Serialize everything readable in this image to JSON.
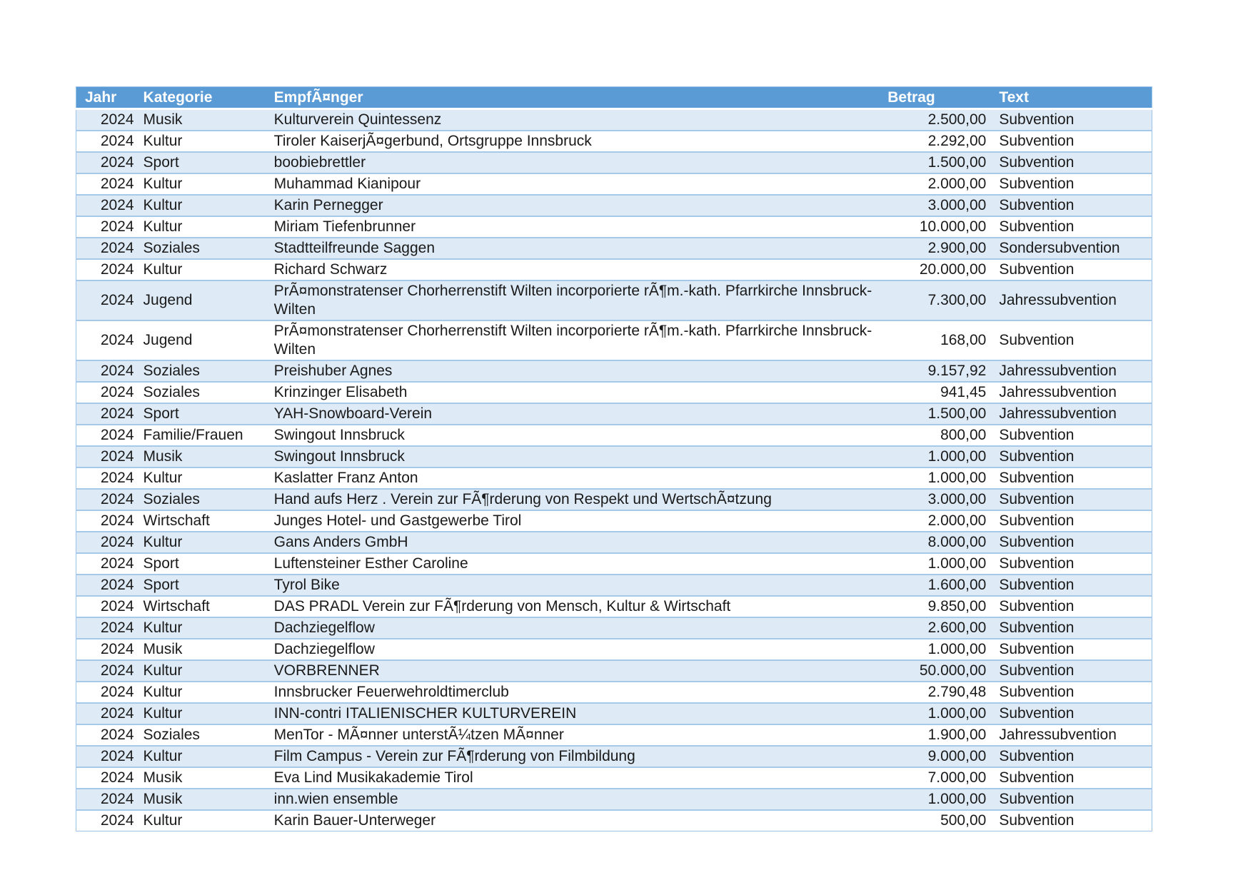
{
  "colors": {
    "header_bg": "#5B9BD5",
    "header_text": "#ffffff",
    "band_row_bg": "#DEEBF7",
    "row_line": "#A6C9E9",
    "frame": "#9DC3E6",
    "cell_text": "#1a1a1a"
  },
  "table": {
    "columns": [
      {
        "key": "jahr",
        "label": "Jahr",
        "align": "right"
      },
      {
        "key": "kategorie",
        "label": "Kategorie",
        "align": "left"
      },
      {
        "key": "empfaenger",
        "label": "EmpfÃ¤nger",
        "align": "left"
      },
      {
        "key": "betrag",
        "label": "Betrag",
        "align": "right"
      },
      {
        "key": "text",
        "label": "Text",
        "align": "left"
      }
    ],
    "rows": [
      [
        "2024",
        "Musik",
        "Kulturverein Quintessenz",
        "2.500,00",
        "Subvention"
      ],
      [
        "2024",
        "Kultur",
        "Tiroler KaiserjÃ¤gerbund, Ortsgruppe Innsbruck",
        "2.292,00",
        "Subvention"
      ],
      [
        "2024",
        "Sport",
        "boobiebrettler",
        "1.500,00",
        "Subvention"
      ],
      [
        "2024",
        "Kultur",
        "Muhammad Kianipour",
        "2.000,00",
        "Subvention"
      ],
      [
        "2024",
        "Kultur",
        "Karin Pernegger",
        "3.000,00",
        "Subvention"
      ],
      [
        "2024",
        "Kultur",
        "Miriam Tiefenbrunner",
        "10.000,00",
        "Subvention"
      ],
      [
        "2024",
        "Soziales",
        "Stadtteilfreunde Saggen",
        "2.900,00",
        "Sondersubvention"
      ],
      [
        "2024",
        "Kultur",
        "Richard Schwarz",
        "20.000,00",
        "Subvention"
      ],
      [
        "2024",
        "Jugend",
        "PrÃ¤monstratenser Chorherrenstift Wilten incorporierte rÃ¶m.-kath. Pfarrkirche Innsbruck-Wilten",
        "7.300,00",
        "Jahressubvention"
      ],
      [
        "2024",
        "Jugend",
        "PrÃ¤monstratenser Chorherrenstift Wilten incorporierte rÃ¶m.-kath. Pfarrkirche Innsbruck-Wilten",
        "168,00",
        "Subvention"
      ],
      [
        "2024",
        "Soziales",
        "Preishuber Agnes",
        "9.157,92",
        "Jahressubvention"
      ],
      [
        "2024",
        "Soziales",
        "Krinzinger Elisabeth",
        "941,45",
        "Jahressubvention"
      ],
      [
        "2024",
        "Sport",
        "YAH-Snowboard-Verein",
        "1.500,00",
        "Jahressubvention"
      ],
      [
        "2024",
        "Familie/Frauen",
        "Swingout Innsbruck",
        "800,00",
        "Subvention"
      ],
      [
        "2024",
        "Musik",
        "Swingout Innsbruck",
        "1.000,00",
        "Subvention"
      ],
      [
        "2024",
        "Kultur",
        "Kaslatter Franz Anton",
        "1.000,00",
        "Subvention"
      ],
      [
        "2024",
        "Soziales",
        "Hand aufs Herz . Verein zur FÃ¶rderung von Respekt und WertschÃ¤tzung",
        "3.000,00",
        "Subvention"
      ],
      [
        "2024",
        "Wirtschaft",
        "Junges Hotel- und Gastgewerbe Tirol",
        "2.000,00",
        "Subvention"
      ],
      [
        "2024",
        "Kultur",
        "Gans Anders GmbH",
        "8.000,00",
        "Subvention"
      ],
      [
        "2024",
        "Sport",
        "Luftensteiner Esther Caroline",
        "1.000,00",
        "Subvention"
      ],
      [
        "2024",
        "Sport",
        "Tyrol Bike",
        "1.600,00",
        "Subvention"
      ],
      [
        "2024",
        "Wirtschaft",
        "DAS PRADL Verein zur FÃ¶rderung von Mensch, Kultur & Wirtschaft",
        "9.850,00",
        "Subvention"
      ],
      [
        "2024",
        "Kultur",
        "Dachziegelflow",
        "2.600,00",
        "Subvention"
      ],
      [
        "2024",
        "Musik",
        "Dachziegelflow",
        "1.000,00",
        "Subvention"
      ],
      [
        "2024",
        "Kultur",
        "VORBRENNER",
        "50.000,00",
        "Subvention"
      ],
      [
        "2024",
        "Kultur",
        "Innsbrucker Feuerwehroldtimerclub",
        "2.790,48",
        "Subvention"
      ],
      [
        "2024",
        "Kultur",
        "INN-contri ITALIENISCHER KULTURVEREIN",
        "1.000,00",
        "Subvention"
      ],
      [
        "2024",
        "Soziales",
        "MenTor - MÃ¤nner unterstÃ¼tzen MÃ¤nner",
        "1.900,00",
        "Jahressubvention"
      ],
      [
        "2024",
        "Kultur",
        "Film Campus - Verein zur FÃ¶rderung von Filmbildung",
        "9.000,00",
        "Subvention"
      ],
      [
        "2024",
        "Musik",
        "Eva Lind Musikakademie Tirol",
        "7.000,00",
        "Subvention"
      ],
      [
        "2024",
        "Musik",
        "inn.wien ensemble",
        "1.000,00",
        "Subvention"
      ],
      [
        "2024",
        "Kultur",
        "Karin Bauer-Unterweger",
        "500,00",
        "Subvention"
      ]
    ]
  }
}
